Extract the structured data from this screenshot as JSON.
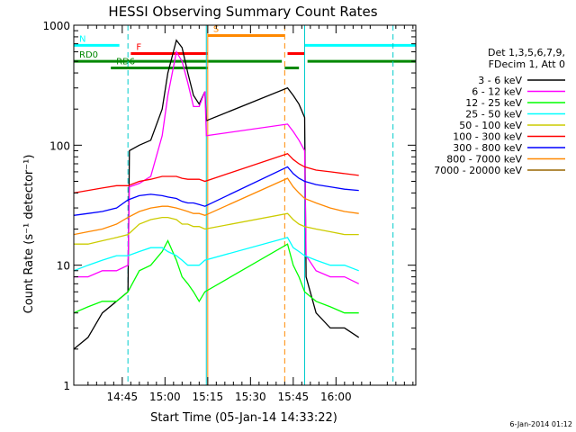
{
  "chart_data": {
    "type": "line",
    "title": "HESSI Observing Summary Count Rates",
    "ylabel": "Count Rate (s⁻¹ detector⁻¹)",
    "xlabel": "Start Time (05-Jan-14 14:33:22)",
    "yscale": "log",
    "ylim": [
      1,
      1000
    ],
    "xlim_minutes": [
      -5,
      115
    ],
    "yticks": [
      "1",
      "10",
      "100",
      "1000"
    ],
    "xticks": [
      {
        "label": "14:45",
        "min": 12
      },
      {
        "label": "15:00",
        "min": 27
      },
      {
        "label": "15:15",
        "min": 42
      },
      {
        "label": "15:30",
        "min": 57
      },
      {
        "label": "15:45",
        "min": 72
      },
      {
        "label": "16:00",
        "min": 87
      }
    ],
    "legend": {
      "header": [
        "Det 1,3,5,6,7,9,",
        "FDecim 1, Att 0"
      ],
      "placement": "right"
    },
    "series": [
      {
        "name": "3 - 6 keV",
        "color": "#000000",
        "values": [
          [
            -5,
            2
          ],
          [
            0,
            2.5
          ],
          [
            5,
            4
          ],
          [
            10,
            5
          ],
          [
            14,
            6
          ],
          [
            14.5,
            90
          ],
          [
            18,
            100
          ],
          [
            22,
            110
          ],
          [
            26,
            200
          ],
          [
            28,
            400
          ],
          [
            31,
            750
          ],
          [
            33,
            650
          ],
          [
            35,
            400
          ],
          [
            37,
            260
          ],
          [
            39,
            220
          ],
          [
            41,
            280
          ],
          [
            41.5,
            160
          ],
          [
            70,
            300
          ],
          [
            72,
            260
          ],
          [
            74,
            220
          ],
          [
            76,
            170
          ],
          [
            76.5,
            8
          ],
          [
            80,
            4
          ],
          [
            85,
            3
          ],
          [
            90,
            3
          ],
          [
            95,
            2.5
          ]
        ]
      },
      {
        "name": "6 - 12 keV",
        "color": "#ff00ff",
        "values": [
          [
            -5,
            8
          ],
          [
            0,
            8
          ],
          [
            5,
            9
          ],
          [
            10,
            9
          ],
          [
            14,
            10
          ],
          [
            14.5,
            45
          ],
          [
            18,
            48
          ],
          [
            22,
            55
          ],
          [
            26,
            120
          ],
          [
            28,
            260
          ],
          [
            31,
            600
          ],
          [
            33,
            500
          ],
          [
            35,
            330
          ],
          [
            37,
            210
          ],
          [
            39,
            210
          ],
          [
            41,
            280
          ],
          [
            41.5,
            120
          ],
          [
            70,
            150
          ],
          [
            72,
            130
          ],
          [
            74,
            110
          ],
          [
            76,
            90
          ],
          [
            76.5,
            12
          ],
          [
            80,
            9
          ],
          [
            85,
            8
          ],
          [
            90,
            8
          ],
          [
            95,
            7
          ]
        ]
      },
      {
        "name": "12 - 25 keV",
        "color": "#00ff00",
        "values": [
          [
            -5,
            4
          ],
          [
            0,
            4.5
          ],
          [
            5,
            5
          ],
          [
            10,
            5
          ],
          [
            14,
            6
          ],
          [
            18,
            9
          ],
          [
            22,
            10
          ],
          [
            26,
            13
          ],
          [
            28,
            16
          ],
          [
            31,
            11
          ],
          [
            33,
            8
          ],
          [
            35,
            7
          ],
          [
            37,
            6
          ],
          [
            39,
            5
          ],
          [
            41,
            6
          ],
          [
            70,
            15
          ],
          [
            72,
            10
          ],
          [
            74,
            8
          ],
          [
            76,
            6
          ],
          [
            80,
            5
          ],
          [
            85,
            4.5
          ],
          [
            90,
            4
          ],
          [
            95,
            4
          ]
        ]
      },
      {
        "name": "25 - 50 keV",
        "color": "#00ffff",
        "values": [
          [
            -5,
            9
          ],
          [
            0,
            10
          ],
          [
            5,
            11
          ],
          [
            10,
            12
          ],
          [
            14,
            12
          ],
          [
            18,
            13
          ],
          [
            22,
            14
          ],
          [
            26,
            14
          ],
          [
            28,
            13
          ],
          [
            31,
            12
          ],
          [
            33,
            11
          ],
          [
            35,
            10
          ],
          [
            37,
            10
          ],
          [
            39,
            10
          ],
          [
            41,
            11
          ],
          [
            70,
            17
          ],
          [
            72,
            14
          ],
          [
            74,
            13
          ],
          [
            76,
            12
          ],
          [
            80,
            11
          ],
          [
            85,
            10
          ],
          [
            90,
            10
          ],
          [
            95,
            9
          ]
        ]
      },
      {
        "name": "50 - 100 keV",
        "color": "#cccc00",
        "values": [
          [
            -5,
            15
          ],
          [
            0,
            15
          ],
          [
            5,
            16
          ],
          [
            10,
            17
          ],
          [
            14,
            18
          ],
          [
            18,
            22
          ],
          [
            22,
            24
          ],
          [
            26,
            25
          ],
          [
            28,
            25
          ],
          [
            31,
            24
          ],
          [
            33,
            22
          ],
          [
            35,
            22
          ],
          [
            37,
            21
          ],
          [
            39,
            21
          ],
          [
            41,
            20
          ],
          [
            70,
            27
          ],
          [
            72,
            24
          ],
          [
            74,
            22
          ],
          [
            76,
            21
          ],
          [
            80,
            20
          ],
          [
            85,
            19
          ],
          [
            90,
            18
          ],
          [
            95,
            18
          ]
        ]
      },
      {
        "name": "100 - 300 keV",
        "color": "#ff0000",
        "values": [
          [
            -5,
            40
          ],
          [
            0,
            42
          ],
          [
            5,
            44
          ],
          [
            10,
            46
          ],
          [
            14,
            46
          ],
          [
            18,
            50
          ],
          [
            22,
            52
          ],
          [
            26,
            55
          ],
          [
            28,
            55
          ],
          [
            31,
            55
          ],
          [
            33,
            53
          ],
          [
            35,
            52
          ],
          [
            37,
            52
          ],
          [
            39,
            52
          ],
          [
            41,
            50
          ],
          [
            70,
            85
          ],
          [
            72,
            76
          ],
          [
            74,
            70
          ],
          [
            76,
            66
          ],
          [
            80,
            62
          ],
          [
            85,
            60
          ],
          [
            90,
            58
          ],
          [
            95,
            56
          ]
        ]
      },
      {
        "name": "300 - 800 keV",
        "color": "#0000ff",
        "values": [
          [
            -5,
            26
          ],
          [
            0,
            27
          ],
          [
            5,
            28
          ],
          [
            10,
            30
          ],
          [
            14,
            35
          ],
          [
            18,
            38
          ],
          [
            22,
            39
          ],
          [
            26,
            38
          ],
          [
            28,
            37
          ],
          [
            31,
            36
          ],
          [
            33,
            34
          ],
          [
            35,
            33
          ],
          [
            37,
            33
          ],
          [
            39,
            32
          ],
          [
            41,
            31
          ],
          [
            70,
            66
          ],
          [
            72,
            58
          ],
          [
            74,
            53
          ],
          [
            76,
            50
          ],
          [
            80,
            47
          ],
          [
            85,
            45
          ],
          [
            90,
            43
          ],
          [
            95,
            42
          ]
        ]
      },
      {
        "name": "800 - 7000 keV",
        "color": "#ff8800",
        "values": [
          [
            -5,
            18
          ],
          [
            0,
            19
          ],
          [
            5,
            20
          ],
          [
            10,
            22
          ],
          [
            14,
            25
          ],
          [
            18,
            28
          ],
          [
            22,
            30
          ],
          [
            26,
            31
          ],
          [
            28,
            31
          ],
          [
            31,
            30
          ],
          [
            33,
            29
          ],
          [
            35,
            28
          ],
          [
            37,
            27
          ],
          [
            39,
            27
          ],
          [
            41,
            26
          ],
          [
            70,
            53
          ],
          [
            72,
            45
          ],
          [
            74,
            40
          ],
          [
            76,
            36
          ],
          [
            80,
            33
          ],
          [
            85,
            30
          ],
          [
            90,
            28
          ],
          [
            95,
            27
          ]
        ]
      },
      {
        "name": "7000 - 20000 keV",
        "color": "#996600",
        "values": []
      }
    ],
    "bars": [
      {
        "label": "N",
        "color": "#00ffff",
        "y": 680,
        "segments": [
          [
            -5,
            11
          ],
          [
            76,
            115
          ]
        ]
      },
      {
        "label": "F",
        "color": "#ff0000",
        "y": 580,
        "segments": [
          [
            15,
            42
          ],
          [
            70,
            76
          ]
        ]
      },
      {
        "label": "S",
        "color": "#ff8800",
        "y": 820,
        "segments": [
          [
            42,
            69
          ]
        ]
      },
      {
        "label": "RD0",
        "color": "#008800",
        "y": 500,
        "segments": [
          [
            -5,
            68
          ],
          [
            77,
            115
          ]
        ]
      },
      {
        "label": "RD6",
        "color": "#008800",
        "y": 440,
        "segments": [
          [
            8,
            42
          ],
          [
            69,
            74
          ]
        ]
      }
    ],
    "vlines": [
      {
        "min": 14,
        "style": "dashed",
        "color": "#00cccc"
      },
      {
        "min": 41.5,
        "style": "solid",
        "color": "#00cccc"
      },
      {
        "min": 42,
        "style": "solid",
        "color": "#ff8800"
      },
      {
        "min": 69,
        "style": "dashed",
        "color": "#ff8800"
      },
      {
        "min": 76,
        "style": "solid",
        "color": "#00cccc"
      },
      {
        "min": 107,
        "style": "dashed",
        "color": "#00cccc"
      }
    ],
    "footnote": "6-Jan-2014 01:12"
  }
}
